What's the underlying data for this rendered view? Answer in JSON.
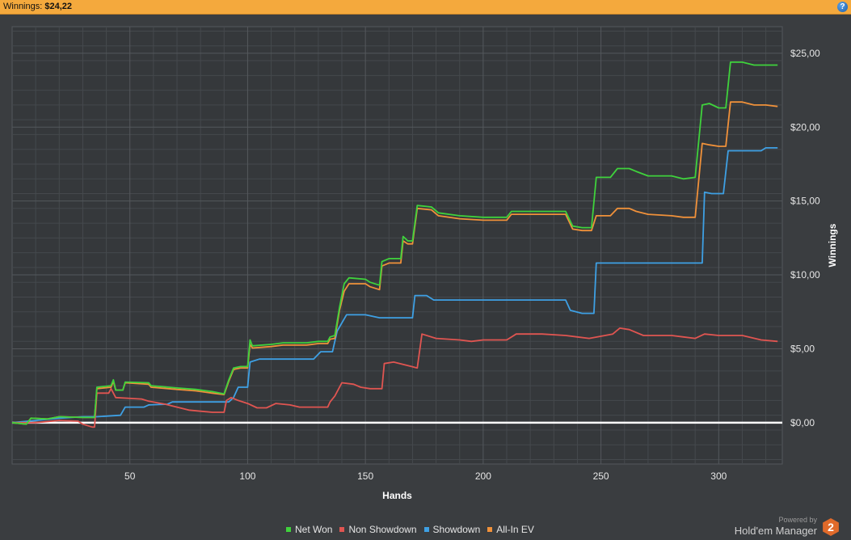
{
  "header": {
    "label": "Winnings:",
    "value": "$24,22",
    "help_symbol": "?"
  },
  "colors": {
    "background": "#3a3d40",
    "plot_background": "#35383b",
    "grid_major": "#54585c",
    "grid_minor": "#45494d",
    "zero_line": "#ffffff",
    "text": "#e6e6e6",
    "header_bar": "#f4a93d"
  },
  "chart_data": {
    "type": "line",
    "xlabel": "Hands",
    "ylabel": "Winnings",
    "xlim": [
      0,
      327
    ],
    "ylim": [
      -2.8,
      26.8
    ],
    "xticks": [
      50,
      100,
      150,
      200,
      250,
      300
    ],
    "xtick_labels": [
      "50",
      "100",
      "150",
      "200",
      "250",
      "300"
    ],
    "yticks": [
      0,
      5,
      10,
      15,
      20,
      25
    ],
    "ytick_labels": [
      "$0,00",
      "$5,00",
      "$10,00",
      "$15,00",
      "$20,00",
      "$25,00"
    ],
    "grid": true,
    "legend_position": "bottom",
    "series": [
      {
        "name": "Net Won",
        "color": "#3fd23c",
        "points": [
          [
            0,
            0
          ],
          [
            6,
            -0.1
          ],
          [
            8,
            0.3
          ],
          [
            15,
            0.25
          ],
          [
            20,
            0.4
          ],
          [
            30,
            0.35
          ],
          [
            35,
            0.35
          ],
          [
            36,
            2.4
          ],
          [
            42,
            2.5
          ],
          [
            43,
            2.9
          ],
          [
            44,
            2.2
          ],
          [
            47,
            2.2
          ],
          [
            48,
            2.75
          ],
          [
            58,
            2.7
          ],
          [
            59,
            2.5
          ],
          [
            70,
            2.35
          ],
          [
            78,
            2.25
          ],
          [
            85,
            2.1
          ],
          [
            90,
            1.95
          ],
          [
            92,
            2.9
          ],
          [
            94,
            3.7
          ],
          [
            97,
            3.8
          ],
          [
            100,
            3.8
          ],
          [
            101,
            5.6
          ],
          [
            102,
            5.2
          ],
          [
            110,
            5.3
          ],
          [
            115,
            5.4
          ],
          [
            120,
            5.4
          ],
          [
            125,
            5.4
          ],
          [
            130,
            5.5
          ],
          [
            134,
            5.5
          ],
          [
            135,
            5.8
          ],
          [
            137,
            5.9
          ],
          [
            139,
            7.8
          ],
          [
            141,
            9.4
          ],
          [
            143,
            9.8
          ],
          [
            150,
            9.7
          ],
          [
            152,
            9.5
          ],
          [
            156,
            9.3
          ],
          [
            157,
            10.9
          ],
          [
            160,
            11.1
          ],
          [
            165,
            11.1
          ],
          [
            166,
            12.6
          ],
          [
            168,
            12.3
          ],
          [
            170,
            12.3
          ],
          [
            172,
            14.7
          ],
          [
            178,
            14.6
          ],
          [
            181,
            14.2
          ],
          [
            190,
            14.0
          ],
          [
            200,
            13.9
          ],
          [
            210,
            13.9
          ],
          [
            212,
            14.3
          ],
          [
            225,
            14.3
          ],
          [
            235,
            14.3
          ],
          [
            238,
            13.3
          ],
          [
            242,
            13.2
          ],
          [
            246,
            13.2
          ],
          [
            248,
            16.6
          ],
          [
            254,
            16.6
          ],
          [
            257,
            17.2
          ],
          [
            262,
            17.2
          ],
          [
            265,
            17.0
          ],
          [
            270,
            16.7
          ],
          [
            280,
            16.7
          ],
          [
            285,
            16.5
          ],
          [
            290,
            16.6
          ],
          [
            293,
            21.5
          ],
          [
            296,
            21.6
          ],
          [
            300,
            21.3
          ],
          [
            303,
            21.3
          ],
          [
            305,
            24.4
          ],
          [
            310,
            24.4
          ],
          [
            315,
            24.2
          ],
          [
            320,
            24.2
          ],
          [
            325,
            24.2
          ]
        ]
      },
      {
        "name": "Non Showdown",
        "color": "#e05551",
        "points": [
          [
            0,
            0
          ],
          [
            10,
            0.0
          ],
          [
            20,
            0.15
          ],
          [
            28,
            0.1
          ],
          [
            30,
            -0.1
          ],
          [
            34,
            -0.3
          ],
          [
            35,
            -0.3
          ],
          [
            36,
            2.0
          ],
          [
            41,
            2.0
          ],
          [
            42,
            2.3
          ],
          [
            44,
            1.7
          ],
          [
            55,
            1.6
          ],
          [
            58,
            1.45
          ],
          [
            65,
            1.25
          ],
          [
            70,
            1.05
          ],
          [
            75,
            0.85
          ],
          [
            85,
            0.7
          ],
          [
            90,
            0.7
          ],
          [
            91,
            1.5
          ],
          [
            93,
            1.7
          ],
          [
            96,
            1.5
          ],
          [
            100,
            1.3
          ],
          [
            104,
            1.0
          ],
          [
            108,
            1.0
          ],
          [
            112,
            1.3
          ],
          [
            118,
            1.2
          ],
          [
            122,
            1.05
          ],
          [
            128,
            1.05
          ],
          [
            134,
            1.05
          ],
          [
            135,
            1.4
          ],
          [
            137,
            1.8
          ],
          [
            140,
            2.7
          ],
          [
            145,
            2.6
          ],
          [
            148,
            2.4
          ],
          [
            152,
            2.3
          ],
          [
            157,
            2.3
          ],
          [
            158,
            4.0
          ],
          [
            162,
            4.1
          ],
          [
            167,
            3.9
          ],
          [
            172,
            3.7
          ],
          [
            174,
            6.0
          ],
          [
            180,
            5.7
          ],
          [
            190,
            5.6
          ],
          [
            195,
            5.5
          ],
          [
            200,
            5.6
          ],
          [
            210,
            5.6
          ],
          [
            214,
            6.0
          ],
          [
            225,
            6.0
          ],
          [
            235,
            5.9
          ],
          [
            240,
            5.8
          ],
          [
            245,
            5.7
          ],
          [
            255,
            6.0
          ],
          [
            258,
            6.4
          ],
          [
            262,
            6.3
          ],
          [
            268,
            5.9
          ],
          [
            280,
            5.9
          ],
          [
            285,
            5.8
          ],
          [
            290,
            5.7
          ],
          [
            294,
            6.0
          ],
          [
            300,
            5.9
          ],
          [
            310,
            5.9
          ],
          [
            318,
            5.6
          ],
          [
            325,
            5.5
          ]
        ]
      },
      {
        "name": "Showdown",
        "color": "#3ea0e4",
        "points": [
          [
            0,
            0
          ],
          [
            10,
            0.15
          ],
          [
            20,
            0.3
          ],
          [
            30,
            0.4
          ],
          [
            36,
            0.4
          ],
          [
            46,
            0.5
          ],
          [
            48,
            1.05
          ],
          [
            56,
            1.05
          ],
          [
            58,
            1.2
          ],
          [
            66,
            1.25
          ],
          [
            68,
            1.4
          ],
          [
            85,
            1.4
          ],
          [
            90,
            1.4
          ],
          [
            92,
            1.4
          ],
          [
            94,
            1.7
          ],
          [
            96,
            2.4
          ],
          [
            100,
            2.4
          ],
          [
            101,
            4.1
          ],
          [
            105,
            4.3
          ],
          [
            120,
            4.3
          ],
          [
            128,
            4.3
          ],
          [
            131,
            4.8
          ],
          [
            136,
            4.8
          ],
          [
            138,
            6.2
          ],
          [
            142,
            7.3
          ],
          [
            150,
            7.3
          ],
          [
            156,
            7.1
          ],
          [
            163,
            7.1
          ],
          [
            170,
            7.1
          ],
          [
            171,
            8.6
          ],
          [
            176,
            8.6
          ],
          [
            179,
            8.3
          ],
          [
            190,
            8.3
          ],
          [
            200,
            8.3
          ],
          [
            220,
            8.3
          ],
          [
            235,
            8.3
          ],
          [
            237,
            7.6
          ],
          [
            242,
            7.4
          ],
          [
            247,
            7.4
          ],
          [
            248,
            10.8
          ],
          [
            260,
            10.8
          ],
          [
            280,
            10.8
          ],
          [
            293,
            10.8
          ],
          [
            294,
            15.6
          ],
          [
            297,
            15.5
          ],
          [
            302,
            15.5
          ],
          [
            304,
            18.4
          ],
          [
            310,
            18.4
          ],
          [
            318,
            18.4
          ],
          [
            320,
            18.6
          ],
          [
            325,
            18.6
          ]
        ]
      },
      {
        "name": "All-In EV",
        "color": "#f0913a",
        "points": [
          [
            0,
            0
          ],
          [
            6,
            -0.1
          ],
          [
            8,
            0.3
          ],
          [
            15,
            0.25
          ],
          [
            20,
            0.4
          ],
          [
            30,
            0.35
          ],
          [
            35,
            0.35
          ],
          [
            36,
            2.3
          ],
          [
            42,
            2.4
          ],
          [
            43,
            2.8
          ],
          [
            44,
            2.2
          ],
          [
            47,
            2.2
          ],
          [
            48,
            2.7
          ],
          [
            58,
            2.6
          ],
          [
            59,
            2.4
          ],
          [
            70,
            2.25
          ],
          [
            78,
            2.15
          ],
          [
            85,
            2.0
          ],
          [
            90,
            1.9
          ],
          [
            92,
            2.8
          ],
          [
            94,
            3.6
          ],
          [
            97,
            3.7
          ],
          [
            100,
            3.7
          ],
          [
            101,
            5.3
          ],
          [
            102,
            5.05
          ],
          [
            110,
            5.15
          ],
          [
            115,
            5.25
          ],
          [
            120,
            5.25
          ],
          [
            125,
            5.25
          ],
          [
            130,
            5.35
          ],
          [
            134,
            5.35
          ],
          [
            135,
            5.65
          ],
          [
            137,
            5.7
          ],
          [
            139,
            7.6
          ],
          [
            141,
            8.9
          ],
          [
            143,
            9.4
          ],
          [
            150,
            9.4
          ],
          [
            152,
            9.2
          ],
          [
            156,
            9.0
          ],
          [
            157,
            10.6
          ],
          [
            160,
            10.8
          ],
          [
            165,
            10.8
          ],
          [
            166,
            12.3
          ],
          [
            168,
            12.1
          ],
          [
            170,
            12.1
          ],
          [
            172,
            14.5
          ],
          [
            178,
            14.4
          ],
          [
            181,
            14.0
          ],
          [
            190,
            13.8
          ],
          [
            200,
            13.7
          ],
          [
            210,
            13.7
          ],
          [
            212,
            14.1
          ],
          [
            225,
            14.1
          ],
          [
            235,
            14.1
          ],
          [
            238,
            13.1
          ],
          [
            242,
            13.0
          ],
          [
            246,
            13.0
          ],
          [
            248,
            14.0
          ],
          [
            254,
            14.0
          ],
          [
            257,
            14.5
          ],
          [
            262,
            14.5
          ],
          [
            265,
            14.3
          ],
          [
            270,
            14.1
          ],
          [
            280,
            14.0
          ],
          [
            285,
            13.9
          ],
          [
            290,
            13.9
          ],
          [
            293,
            18.9
          ],
          [
            296,
            18.8
          ],
          [
            300,
            18.7
          ],
          [
            303,
            18.7
          ],
          [
            305,
            21.7
          ],
          [
            310,
            21.7
          ],
          [
            315,
            21.5
          ],
          [
            320,
            21.5
          ],
          [
            325,
            21.4
          ]
        ]
      }
    ]
  },
  "legend": {
    "items": [
      {
        "label": "Net Won",
        "color": "#3fd23c"
      },
      {
        "label": "Non Showdown",
        "color": "#e05551"
      },
      {
        "label": "Showdown",
        "color": "#3ea0e4"
      },
      {
        "label": "All-In EV",
        "color": "#f0913a"
      }
    ]
  },
  "brand": {
    "powered": "Powered by",
    "product": "Hold'em Manager",
    "logo_text": "2"
  }
}
